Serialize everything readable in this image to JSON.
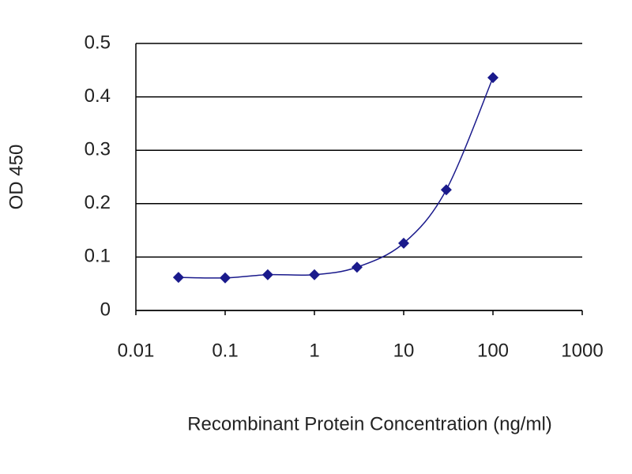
{
  "chart_data": {
    "type": "line",
    "xlabel": "Recombinant Protein Concentration (ng/ml)",
    "ylabel": "OD 450",
    "x": [
      0.03,
      0.1,
      0.3,
      1,
      3,
      10,
      30,
      100
    ],
    "values": [
      0.062,
      0.061,
      0.067,
      0.067,
      0.081,
      0.126,
      0.226,
      0.436
    ],
    "color": "#1a1a8c",
    "xlim": [
      0.01,
      1000
    ],
    "xticks": [
      0.01,
      0.1,
      1,
      10,
      100,
      1000
    ],
    "xscale": "log",
    "ylim": [
      0,
      0.5
    ],
    "yticks": [
      0,
      0.1,
      0.2,
      0.3,
      0.4,
      0.5
    ],
    "grid": true
  }
}
